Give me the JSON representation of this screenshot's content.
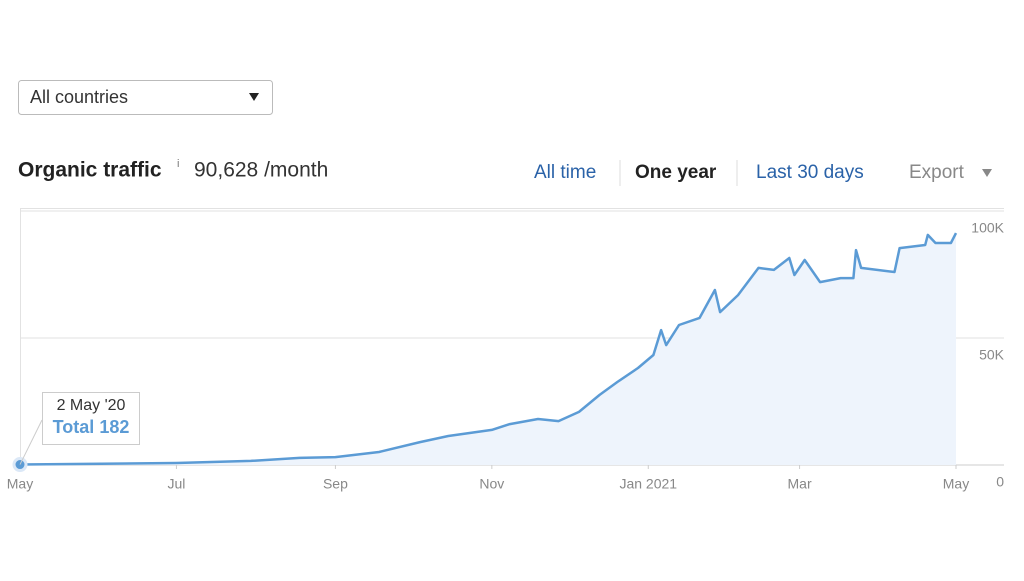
{
  "dropdown": {
    "label": "All countries"
  },
  "header": {
    "title": "Organic traffic",
    "info": "i",
    "metric": "90,628 /month"
  },
  "tabs": [
    "All time",
    "One year",
    "Last 30 days",
    "Export"
  ],
  "tooltip": {
    "date": "2 May '20",
    "label": "Total"
  },
  "chart_data": {
    "type": "line",
    "color": "#5b9bd5",
    "x": [
      0,
      61,
      90,
      109,
      123,
      140,
      156,
      167,
      184,
      191,
      202,
      210,
      218,
      226,
      233,
      241,
      247,
      250,
      252,
      257,
      265,
      271,
      273,
      280,
      288,
      294,
      300,
      302,
      306,
      312,
      320,
      325,
      326,
      328,
      341,
      343,
      353,
      354,
      357,
      363,
      365
    ],
    "values": [
      182,
      800,
      1600,
      2800,
      3100,
      5100,
      9000,
      11400,
      13800,
      16100,
      18100,
      17300,
      20900,
      27600,
      32700,
      38200,
      43300,
      53100,
      47200,
      55100,
      57900,
      68900,
      60200,
      66900,
      77600,
      76800,
      81500,
      74800,
      80700,
      72000,
      73600,
      73600,
      84600,
      77600,
      76000,
      85400,
      86600,
      90600,
      87400,
      87400,
      91300
    ],
    "xlim": [
      0,
      365
    ],
    "xticks": [
      {
        "value": 0,
        "label": "May"
      },
      {
        "value": 61,
        "label": "Jul"
      },
      {
        "value": 123,
        "label": "Sep"
      },
      {
        "value": 184,
        "label": "Nov"
      },
      {
        "value": 245,
        "label": "Jan 2021"
      },
      {
        "value": 304,
        "label": "Mar"
      },
      {
        "value": 365,
        "label": "May"
      }
    ],
    "ylim": [
      0,
      100000
    ],
    "yticks": [
      0,
      {
        "value": 50000,
        "label": "50K"
      },
      {
        "value": 100000,
        "label": "100K"
      }
    ],
    "grid": true
  }
}
